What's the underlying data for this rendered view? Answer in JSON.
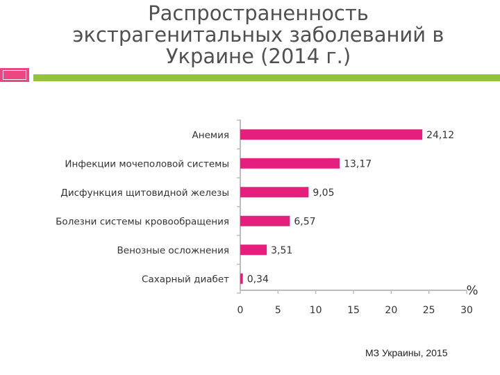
{
  "title": {
    "line1": "Распространенность",
    "line2": "экстрагенитальных заболеваний в",
    "line3": "Украине (2014 г.)"
  },
  "source": "МЗ Украины, 2015",
  "colors": {
    "bar": "#e5207c",
    "accent_pink": "#ee4680",
    "accent_green": "#94c43c",
    "axis": "#bdbdbd"
  },
  "chart_data": {
    "type": "bar",
    "orientation": "horizontal",
    "categories": [
      "Анемия",
      "Инфекции мочеполовой системы",
      "Дисфункция щитовидной железы",
      "Болезни системы кровообращения",
      "Венозные осложнения",
      "Сахарный диабет"
    ],
    "values": [
      24.12,
      13.17,
      9.05,
      6.57,
      3.51,
      0.34
    ],
    "value_labels": [
      "24,12",
      "13,17",
      "9,05",
      "6,57",
      "3,51",
      "0,34"
    ],
    "xticks": [
      "0",
      "5",
      "10",
      "15",
      "20",
      "25",
      "30"
    ],
    "xlim": [
      0,
      30
    ],
    "xunit": "%",
    "grid": false
  }
}
